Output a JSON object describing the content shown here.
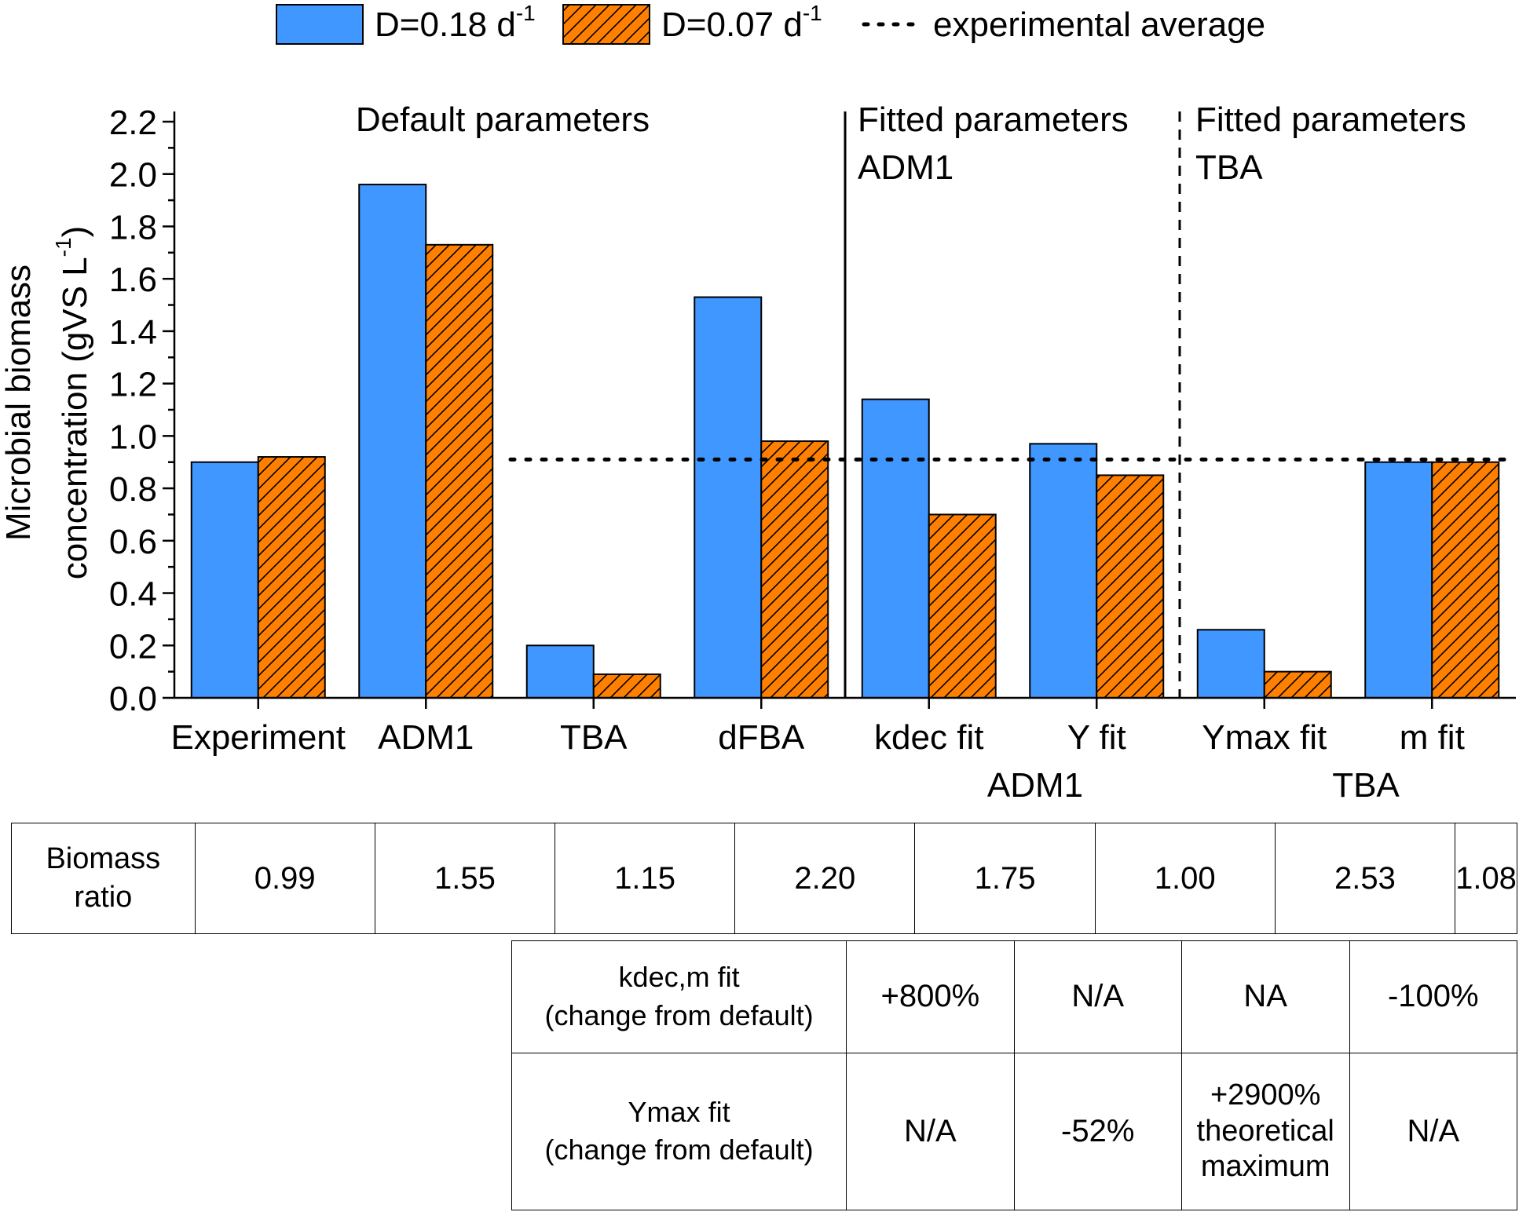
{
  "chart_data": {
    "type": "bar",
    "categories": [
      "Experiment",
      "ADM1",
      "TBA",
      "dFBA",
      "kdec fit",
      "Y fit",
      "Ymax fit",
      "m fit"
    ],
    "series": [
      {
        "name": "D=0.18 d",
        "unit_sup": "-1",
        "color": "#3f97ff",
        "hatch": false,
        "values": [
          0.9,
          1.96,
          0.2,
          1.53,
          1.14,
          0.97,
          0.26,
          0.9
        ]
      },
      {
        "name": "D=0.07 d",
        "unit_sup": "-1",
        "color": "#ff8000",
        "hatch": true,
        "values": [
          0.92,
          1.73,
          0.09,
          0.98,
          0.7,
          0.85,
          0.1,
          0.9
        ]
      }
    ],
    "experimental_average": {
      "label": "experimental average",
      "value": 0.91
    },
    "ylabel_line1": "Microbial biomass",
    "ylabel_line2_main": "concentration (gVS L",
    "ylabel_line2_sup": "-1",
    "ylabel_line2_end": ")",
    "ylim": [
      0,
      2.2
    ],
    "yticks": [
      "0.0",
      "0.2",
      "0.4",
      "0.6",
      "0.8",
      "1.0",
      "1.2",
      "1.4",
      "1.6",
      "1.8",
      "2.0",
      "2.2"
    ],
    "sections": [
      {
        "title": "Default parameters",
        "subtitle": ""
      },
      {
        "title": "Fitted parameters",
        "subtitle": "ADM1"
      },
      {
        "title": "Fitted parameters",
        "subtitle": "TBA"
      }
    ],
    "group_labels": [
      "ADM1",
      "TBA"
    ]
  },
  "ratio_table": {
    "header": [
      "Biomass",
      "ratio"
    ],
    "values": [
      "0.99",
      "1.55",
      "1.15",
      "2.20",
      "1.75",
      "1.00",
      "2.53",
      "1.08"
    ]
  },
  "fit_table": {
    "rows": [
      {
        "header": [
          "kdec,m fit",
          "(change from default)"
        ],
        "values": [
          "+800%",
          "N/A",
          "NA",
          "-100%"
        ]
      },
      {
        "header": [
          "Ymax fit",
          "(change from default)"
        ],
        "values": [
          "N/A",
          "-52%",
          "+2900%|theoretical|maximum",
          "N/A"
        ]
      }
    ]
  }
}
